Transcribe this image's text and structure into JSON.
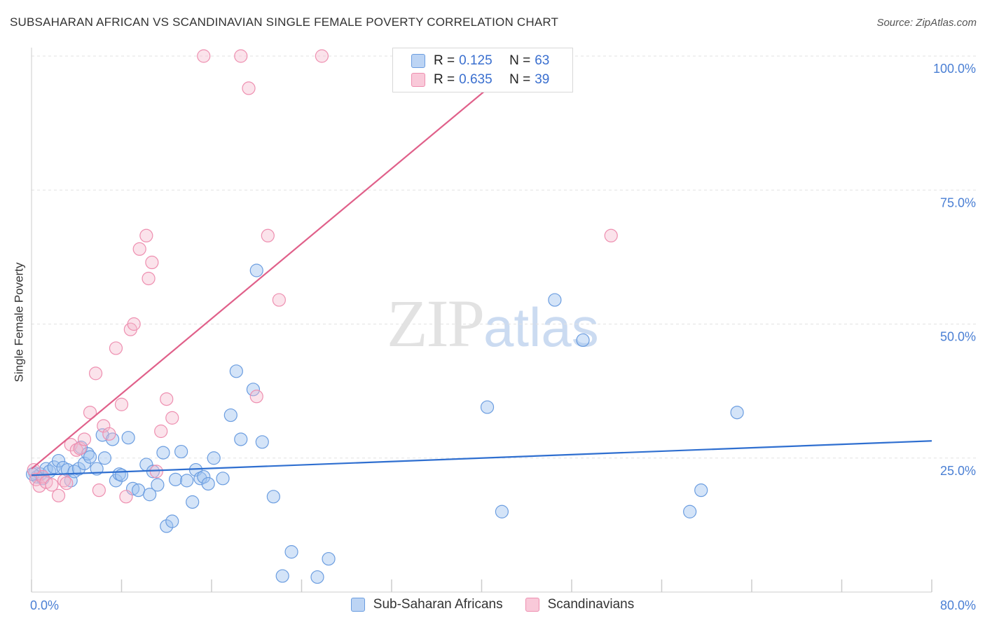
{
  "header": {
    "title": "SUBSAHARAN AFRICAN VS SCANDINAVIAN SINGLE FEMALE POVERTY CORRELATION CHART",
    "source": "Source: ZipAtlas.com"
  },
  "watermark": {
    "zip": "ZIP",
    "atlas": "atlas"
  },
  "legend": {
    "rows": [
      {
        "r_label": "R =",
        "r_value": "0.125",
        "n_label": "N =",
        "n_value": "63"
      },
      {
        "r_label": "R =",
        "r_value": "0.635",
        "n_label": "N =",
        "n_value": "39"
      }
    ]
  },
  "chart_data": {
    "type": "scatter",
    "title": "SUBSAHARAN AFRICAN VS SCANDINAVIAN SINGLE FEMALE POVERTY CORRELATION CHART",
    "xlabel": "",
    "ylabel": "Single Female Poverty",
    "xlim": [
      0,
      80
    ],
    "ylim": [
      0,
      100
    ],
    "x_tick_labels": [
      "0.0%",
      "80.0%"
    ],
    "y_tick_labels": [
      "25.0%",
      "50.0%",
      "75.0%",
      "100.0%"
    ],
    "y_ticks": [
      25,
      50,
      75,
      100
    ],
    "grid": true,
    "legend_position": "top-center",
    "colors": {
      "Sub-Saharan Africans": "#6b9de0",
      "Scandinavians": "#ee8fb0",
      "blue_line": "#2f6fd0",
      "pink_line": "#e0608a"
    },
    "series": [
      {
        "name": "Sub-Saharan Africans",
        "r": 0.125,
        "n": 63,
        "trend": {
          "x": [
            0,
            80
          ],
          "y": [
            21.8,
            28.2
          ]
        },
        "points": [
          [
            0.3,
            22.2
          ],
          [
            0.5,
            21.5
          ],
          [
            0.8,
            22.0
          ],
          [
            1.0,
            21.2
          ],
          [
            1.3,
            23.0
          ],
          [
            1.6,
            22.5
          ],
          [
            2.0,
            23.3
          ],
          [
            2.4,
            24.5
          ],
          [
            2.8,
            23.2
          ],
          [
            3.2,
            22.8
          ],
          [
            3.5,
            20.8
          ],
          [
            3.8,
            22.5
          ],
          [
            4.2,
            23.0
          ],
          [
            4.4,
            27.0
          ],
          [
            4.7,
            24.0
          ],
          [
            5.0,
            25.8
          ],
          [
            5.2,
            25.2
          ],
          [
            5.8,
            23.0
          ],
          [
            6.3,
            29.3
          ],
          [
            6.5,
            25.0
          ],
          [
            7.2,
            28.5
          ],
          [
            7.5,
            20.8
          ],
          [
            7.8,
            22.0
          ],
          [
            8.0,
            21.8
          ],
          [
            8.6,
            28.8
          ],
          [
            9.0,
            19.3
          ],
          [
            9.5,
            19.0
          ],
          [
            10.2,
            23.8
          ],
          [
            10.5,
            18.2
          ],
          [
            10.8,
            22.5
          ],
          [
            11.2,
            20.0
          ],
          [
            11.7,
            26.0
          ],
          [
            12.0,
            12.3
          ],
          [
            12.5,
            13.2
          ],
          [
            12.8,
            21.0
          ],
          [
            13.3,
            26.2
          ],
          [
            13.8,
            20.8
          ],
          [
            14.3,
            16.8
          ],
          [
            14.6,
            22.8
          ],
          [
            15.0,
            21.2
          ],
          [
            15.3,
            21.5
          ],
          [
            15.7,
            20.2
          ],
          [
            16.2,
            25.0
          ],
          [
            17.0,
            21.2
          ],
          [
            17.7,
            33.0
          ],
          [
            18.2,
            41.2
          ],
          [
            18.6,
            28.5
          ],
          [
            19.7,
            37.8
          ],
          [
            20.0,
            60.0
          ],
          [
            20.5,
            28.0
          ],
          [
            21.5,
            17.8
          ],
          [
            22.3,
            3.0
          ],
          [
            23.1,
            7.5
          ],
          [
            25.4,
            2.8
          ],
          [
            26.4,
            6.2
          ],
          [
            40.5,
            34.5
          ],
          [
            41.8,
            15.0
          ],
          [
            46.5,
            54.5
          ],
          [
            49.0,
            47.0
          ],
          [
            58.5,
            15.0
          ],
          [
            59.5,
            19.0
          ],
          [
            62.7,
            33.5
          ],
          [
            0.1,
            22.0
          ]
        ]
      },
      {
        "name": "Scandinavians",
        "r": 0.635,
        "n": 39,
        "trend": {
          "x": [
            0,
            44
          ],
          "y": [
            23.0,
            100.0
          ]
        },
        "points": [
          [
            0.2,
            22.8
          ],
          [
            0.4,
            21.0
          ],
          [
            0.7,
            19.8
          ],
          [
            1.0,
            21.5
          ],
          [
            1.3,
            20.5
          ],
          [
            1.8,
            20.0
          ],
          [
            2.4,
            18.0
          ],
          [
            2.9,
            20.8
          ],
          [
            3.1,
            20.3
          ],
          [
            3.5,
            27.5
          ],
          [
            4.0,
            26.5
          ],
          [
            4.3,
            26.8
          ],
          [
            4.7,
            28.5
          ],
          [
            5.2,
            33.5
          ],
          [
            5.7,
            40.8
          ],
          [
            6.0,
            19.0
          ],
          [
            6.4,
            31.0
          ],
          [
            6.9,
            29.5
          ],
          [
            7.5,
            45.5
          ],
          [
            8.0,
            35.0
          ],
          [
            8.4,
            17.8
          ],
          [
            8.8,
            49.0
          ],
          [
            9.1,
            50.0
          ],
          [
            9.6,
            64.0
          ],
          [
            10.2,
            66.5
          ],
          [
            10.4,
            58.5
          ],
          [
            10.7,
            61.5
          ],
          [
            11.1,
            22.5
          ],
          [
            11.5,
            30.0
          ],
          [
            12.0,
            36.0
          ],
          [
            12.5,
            32.5
          ],
          [
            15.3,
            100.0
          ],
          [
            18.6,
            100.0
          ],
          [
            19.3,
            94.0
          ],
          [
            20.0,
            36.5
          ],
          [
            21.0,
            66.5
          ],
          [
            22.0,
            54.5
          ],
          [
            25.8,
            100.0
          ],
          [
            51.5,
            66.5
          ]
        ]
      }
    ]
  },
  "bottom_legend": {
    "items": [
      {
        "label": "Sub-Saharan Africans"
      },
      {
        "label": "Scandinavians"
      }
    ]
  }
}
